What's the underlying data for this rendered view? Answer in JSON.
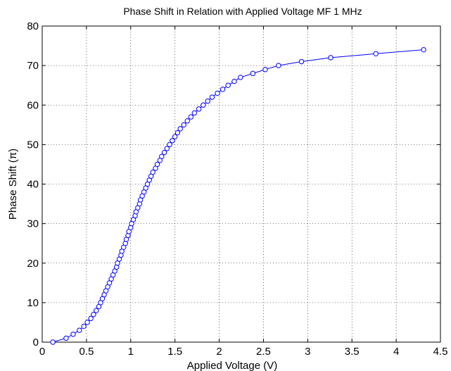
{
  "chart_data": {
    "type": "line",
    "title": "Phase Shift in Relation with Applied Voltage MF 1 MHz",
    "xlabel": "Applied Voltage (V)",
    "ylabel": "Phase Shift (π)",
    "xlim": [
      0,
      4.5
    ],
    "ylim": [
      0,
      80
    ],
    "x_ticks": [
      "0",
      "0.5",
      "1",
      "1.5",
      "2",
      "2.5",
      "3",
      "3.5",
      "4",
      "4.5"
    ],
    "y_ticks": [
      "0",
      "10",
      "20",
      "30",
      "40",
      "50",
      "60",
      "70",
      "80"
    ],
    "grid": true,
    "marker": "circle",
    "series": [
      {
        "color": "#0000ff",
        "x": [
          0.12,
          0.27,
          0.35,
          0.42,
          0.47,
          0.51,
          0.55,
          0.58,
          0.61,
          0.64,
          0.66,
          0.68,
          0.7,
          0.72,
          0.74,
          0.76,
          0.78,
          0.8,
          0.82,
          0.84,
          0.85,
          0.87,
          0.89,
          0.9,
          0.92,
          0.94,
          0.95,
          0.97,
          0.98,
          1.0,
          1.01,
          1.03,
          1.05,
          1.06,
          1.08,
          1.1,
          1.11,
          1.13,
          1.15,
          1.17,
          1.19,
          1.21,
          1.23,
          1.25,
          1.28,
          1.3,
          1.33,
          1.35,
          1.38,
          1.41,
          1.44,
          1.47,
          1.5,
          1.53,
          1.56,
          1.6,
          1.64,
          1.68,
          1.72,
          1.77,
          1.82,
          1.87,
          1.92,
          1.98,
          2.04,
          2.1,
          2.17,
          2.24,
          2.38,
          2.52,
          2.67,
          2.93,
          3.26,
          3.77,
          4.31
        ],
        "y": [
          0,
          1,
          2,
          3,
          4,
          5,
          6,
          7,
          8,
          9,
          10,
          11,
          12,
          13,
          14,
          15,
          16,
          17,
          18,
          19,
          20,
          21,
          22,
          23,
          24,
          25,
          26,
          27,
          28,
          29,
          30,
          31,
          32,
          33,
          34,
          35,
          36,
          37,
          38,
          39,
          40,
          41,
          42,
          43,
          44,
          45,
          46,
          47,
          48,
          49,
          50,
          51,
          52,
          53,
          54,
          55,
          56,
          57,
          58,
          59,
          60,
          61,
          62,
          63,
          64,
          65,
          66,
          67,
          68,
          69,
          70,
          71,
          72,
          73,
          74
        ]
      }
    ]
  }
}
